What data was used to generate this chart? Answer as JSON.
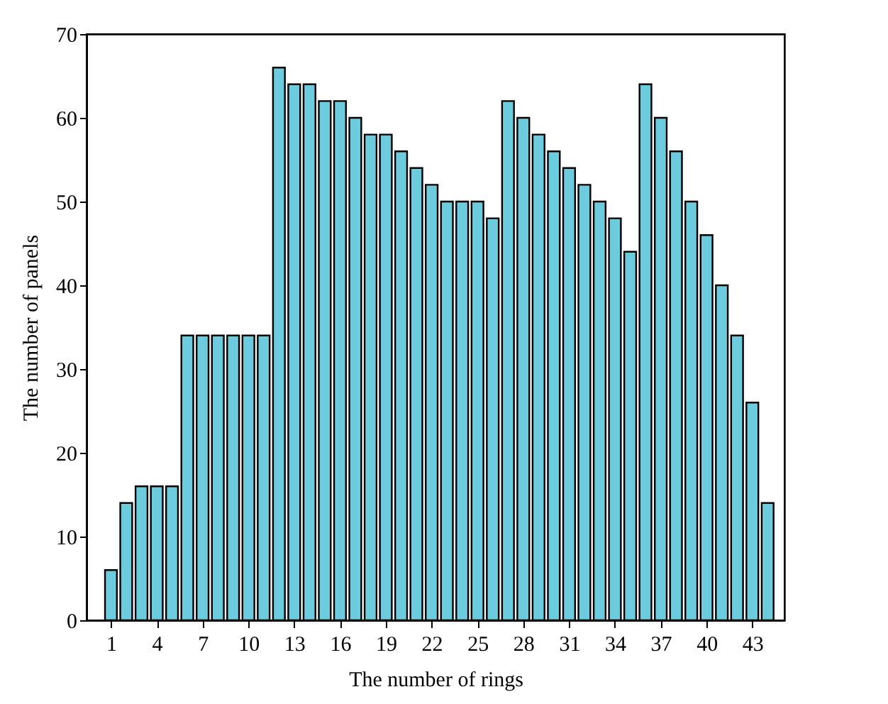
{
  "chart_data": {
    "type": "bar",
    "xlabel": "The number of rings",
    "ylabel": "The number of panels",
    "x": [
      1,
      2,
      3,
      4,
      5,
      6,
      7,
      8,
      9,
      10,
      11,
      12,
      13,
      14,
      15,
      16,
      17,
      18,
      19,
      20,
      21,
      22,
      23,
      24,
      25,
      26,
      27,
      28,
      29,
      30,
      31,
      32,
      33,
      34,
      35,
      36,
      37,
      38,
      39,
      40,
      41,
      42,
      43,
      44
    ],
    "values": [
      6,
      14,
      16,
      16,
      16,
      34,
      34,
      34,
      34,
      34,
      34,
      66,
      64,
      64,
      62,
      62,
      60,
      58,
      58,
      56,
      54,
      52,
      50,
      50,
      50,
      48,
      62,
      60,
      58,
      56,
      54,
      52,
      50,
      48,
      44,
      64,
      60,
      56,
      50,
      46,
      40,
      34,
      26,
      14
    ],
    "color": "#6ccbdc",
    "xlim": [
      -0.6,
      45.1
    ],
    "xticks": [
      1,
      4,
      7,
      10,
      13,
      16,
      19,
      22,
      25,
      28,
      31,
      34,
      37,
      40,
      43
    ],
    "ylim": [
      0,
      70
    ],
    "yticks": [
      0,
      10,
      20,
      30,
      40,
      50,
      60,
      70
    ],
    "grid": false
  }
}
